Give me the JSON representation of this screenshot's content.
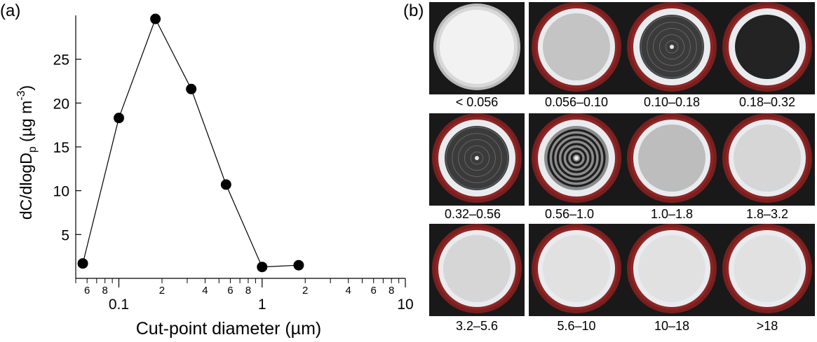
{
  "panel_a_label": "(a)",
  "panel_b_label": "(b)",
  "chart_data": {
    "type": "line",
    "xscale": "log",
    "x": [
      0.056,
      0.1,
      0.18,
      0.32,
      0.56,
      1.0,
      1.8
    ],
    "series": [
      {
        "values": [
          1.7,
          18.3,
          29.6,
          21.6,
          10.7,
          1.3,
          1.5
        ]
      }
    ],
    "xlabel": "Cut-point diameter (µm)",
    "ylabel_main": "dC/dlogD",
    "ylabel_sub": "p",
    "ylabel_unit": " (µg m",
    "ylabel_sup": "-3",
    "ylabel_close": ")",
    "xlim": [
      0.05,
      10
    ],
    "ylim": [
      0,
      30
    ],
    "yticks": [
      5,
      10,
      15,
      20,
      25
    ],
    "ytick_labels": [
      "5",
      "10",
      "15",
      "20",
      "25"
    ],
    "xticks_major": [
      0.1,
      1,
      10
    ],
    "xtick_major_labels": [
      "0.1",
      "1",
      "10"
    ],
    "xticks_minor": [
      0.06,
      0.08,
      0.2,
      0.4,
      0.6,
      0.8,
      2,
      4,
      6,
      8
    ],
    "xtick_minor_labels": [
      "6",
      "8",
      "2",
      "4",
      "6",
      "8",
      "2",
      "4",
      "6",
      "8"
    ],
    "grid": false,
    "marker_color": "#000000",
    "line_color": "#000000"
  },
  "filters": [
    {
      "label": "< 0.056",
      "holder": "metal",
      "deposit": "none"
    },
    {
      "label": "0.056–0.10",
      "holder": "red",
      "deposit": "light-gray"
    },
    {
      "label": "0.10–0.18",
      "holder": "red",
      "deposit": "dark"
    },
    {
      "label": "0.18–0.32",
      "holder": "red",
      "deposit": "black"
    },
    {
      "label": "0.32–0.56",
      "holder": "red",
      "deposit": "dark"
    },
    {
      "label": "0.56–1.0",
      "holder": "red",
      "deposit": "rings"
    },
    {
      "label": "1.0–1.8",
      "holder": "red",
      "deposit": "gray"
    },
    {
      "label": "1.8–3.2",
      "holder": "red",
      "deposit": "faint"
    },
    {
      "label": "3.2–5.6",
      "holder": "red",
      "deposit": "faint"
    },
    {
      "label": "5.6–10",
      "holder": "red",
      "deposit": "very-faint"
    },
    {
      "label": "10–18",
      "holder": "red",
      "deposit": "very-faint"
    },
    {
      "label": ">18",
      "holder": "red",
      "deposit": "very-faint"
    }
  ]
}
